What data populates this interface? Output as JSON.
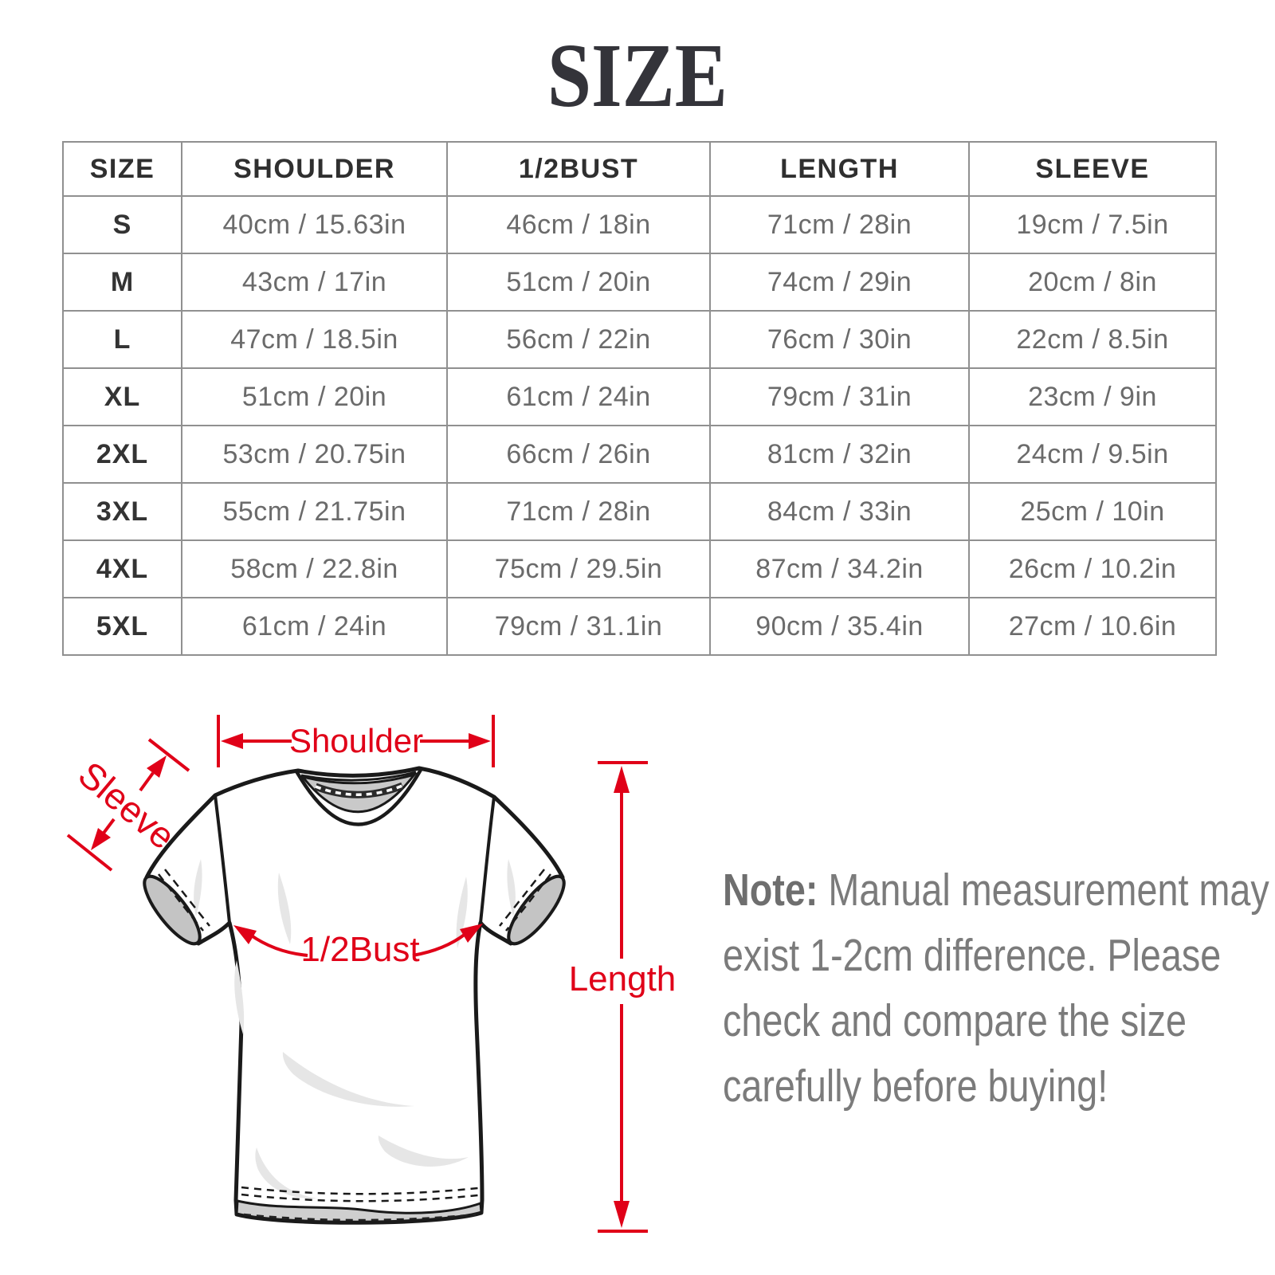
{
  "title": "SIZE",
  "table": {
    "headers": [
      "SIZE",
      "SHOULDER",
      "1/2BUST",
      "LENGTH",
      "SLEEVE"
    ],
    "rows": [
      [
        "S",
        "40cm / 15.63in",
        "46cm / 18in",
        "71cm / 28in",
        "19cm / 7.5in"
      ],
      [
        "M",
        "43cm / 17in",
        "51cm / 20in",
        "74cm / 29in",
        "20cm / 8in"
      ],
      [
        "L",
        "47cm / 18.5in",
        "56cm / 22in",
        "76cm / 30in",
        "22cm / 8.5in"
      ],
      [
        "XL",
        "51cm / 20in",
        "61cm / 24in",
        "79cm / 31in",
        "23cm / 9in"
      ],
      [
        "2XL",
        "53cm / 20.75in",
        "66cm / 26in",
        "81cm / 32in",
        "24cm / 9.5in"
      ],
      [
        "3XL",
        "55cm / 21.75in",
        "71cm / 28in",
        "84cm / 33in",
        "25cm / 10in"
      ],
      [
        "4XL",
        "58cm / 22.8in",
        "75cm / 29.5in",
        "87cm / 34.2in",
        "26cm / 10.2in"
      ],
      [
        "5XL",
        "61cm / 24in",
        "79cm / 31.1in",
        "90cm / 35.4in",
        "27cm / 10.6in"
      ]
    ]
  },
  "diagram": {
    "shoulder_label": "Shoulder",
    "sleeve_label": "Sleeve",
    "bust_label": "1/2Bust",
    "length_label": "Length",
    "accent_color": "#e00018"
  },
  "note": {
    "prefix": "Note:",
    "line1_rest": " Manual measurement may",
    "line2": "exist 1-2cm difference. Please",
    "line3": "check and compare the size",
    "line4": "carefully before buying!"
  }
}
